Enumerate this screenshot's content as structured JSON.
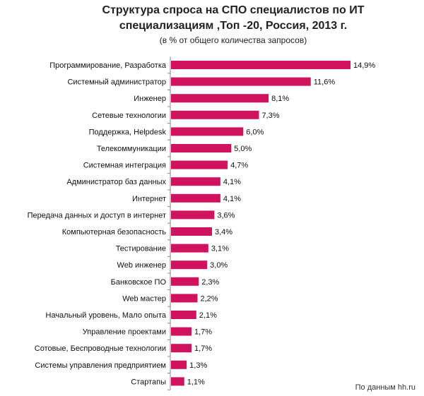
{
  "title_line1": "Структура спроса на СПО специалистов по ИТ",
  "title_line2": "специализациям ,Топ -20,  Россия, 2013 г.",
  "subtitle": "(в % от общего количества запросов)",
  "source": "По данным hh.ru",
  "bar_color": "#d1135f",
  "chart_data": {
    "type": "bar",
    "orientation": "horizontal",
    "categories": [
      "Программирование, Разработка",
      "Системный администратор",
      "Инженер",
      "Сетевые технологии",
      "Поддержка, Helpdesk",
      "Телекоммуникации",
      "Системная интеграция",
      "Администратор баз данных",
      "Интернет",
      "Передача данных и доступ в интернет",
      "Компьютерная безопасность",
      "Тестирование",
      "Web инженер",
      "Банковское ПО",
      "Web мастер",
      "Начальный уровень, Мало опыта",
      "Управление проектами",
      "Сотовые, Беспроводные технологии",
      "Системы управления предприятием",
      "Стартапы"
    ],
    "values": [
      14.9,
      11.6,
      8.1,
      7.3,
      6.0,
      5.0,
      4.7,
      4.1,
      4.1,
      3.6,
      3.4,
      3.1,
      3.0,
      2.3,
      2.2,
      2.1,
      1.7,
      1.7,
      1.3,
      1.1
    ],
    "labels": [
      "14,9%",
      "11,6%",
      "8,1%",
      "7,3%",
      "6,0%",
      "5,0%",
      "4,7%",
      "4,1%",
      "4,1%",
      "3,6%",
      "3,4%",
      "3,1%",
      "3,0%",
      "2,3%",
      "2,2%",
      "2,1%",
      "1,7%",
      "1,7%",
      "1,3%",
      "1,1%"
    ],
    "unit": "%",
    "xlim": [
      0,
      14.9
    ],
    "grid": false,
    "legend": "none"
  }
}
